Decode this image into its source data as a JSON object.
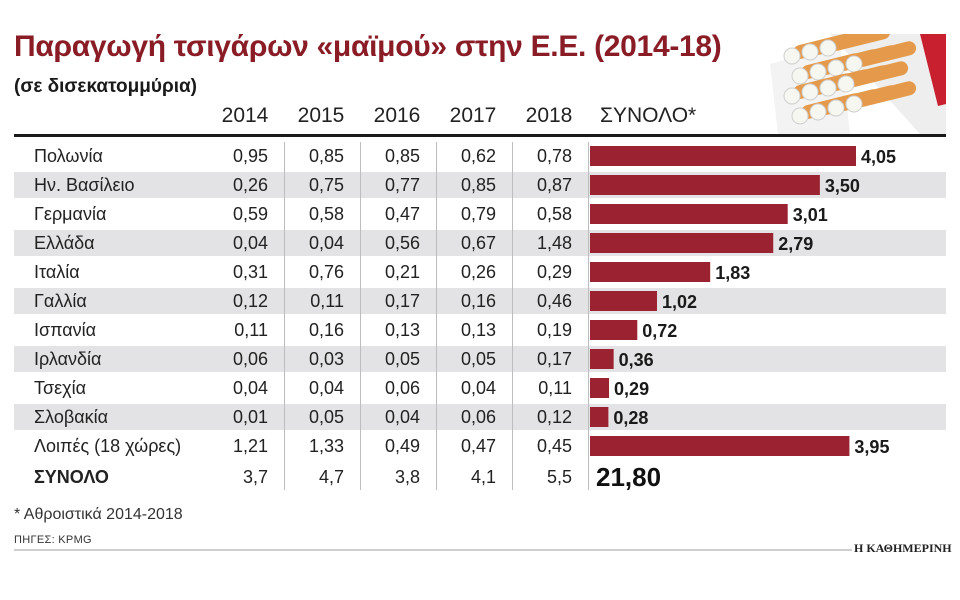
{
  "title": "Παραγωγή τσιγάρων «μαϊμού» στην Ε.Ε. (2014-18)",
  "subtitle": "(σε δισεκατομμύρια)",
  "footnote": "* Αθροιστικά 2014-2018",
  "source": "ΠΗΓΕΣ: KPMG",
  "brand": "Η ΚΑΘΗΜΕΡΙΝΗ",
  "colors": {
    "title": "#8a1c26",
    "bar": "#9b2331",
    "shade": "#e3e3e5"
  },
  "chart_data": {
    "type": "table",
    "title": "Παραγωγή τσιγάρων «μαϊμού» στην Ε.Ε. (2014-18)",
    "subtitle": "(σε δισεκατομμύρια)",
    "columns": [
      "2014",
      "2015",
      "2016",
      "2017",
      "2018",
      "ΣΥΝΟΛΟ*"
    ],
    "rows": [
      {
        "country": "Πολωνία",
        "values": [
          "0,95",
          "0,85",
          "0,85",
          "0,62",
          "0,78"
        ],
        "total": 4.05,
        "total_label": "4,05"
      },
      {
        "country": "Ην. Βασίλειο",
        "values": [
          "0,26",
          "0,75",
          "0,77",
          "0,85",
          "0,87"
        ],
        "total": 3.5,
        "total_label": "3,50"
      },
      {
        "country": "Γερμανία",
        "values": [
          "0,59",
          "0,58",
          "0,47",
          "0,79",
          "0,58"
        ],
        "total": 3.01,
        "total_label": "3,01"
      },
      {
        "country": "Ελλάδα",
        "values": [
          "0,04",
          "0,04",
          "0,56",
          "0,67",
          "1,48"
        ],
        "total": 2.79,
        "total_label": "2,79"
      },
      {
        "country": "Ιταλία",
        "values": [
          "0,31",
          "0,76",
          "0,21",
          "0,26",
          "0,29"
        ],
        "total": 1.83,
        "total_label": "1,83"
      },
      {
        "country": "Γαλλία",
        "values": [
          "0,12",
          "0,11",
          "0,17",
          "0,16",
          "0,46"
        ],
        "total": 1.02,
        "total_label": "1,02"
      },
      {
        "country": "Ισπανία",
        "values": [
          "0,11",
          "0,16",
          "0,13",
          "0,13",
          "0,19"
        ],
        "total": 0.72,
        "total_label": "0,72"
      },
      {
        "country": "Ιρλανδία",
        "values": [
          "0,06",
          "0,03",
          "0,05",
          "0,05",
          "0,17"
        ],
        "total": 0.36,
        "total_label": "0,36"
      },
      {
        "country": "Τσεχία",
        "values": [
          "0,04",
          "0,04",
          "0,06",
          "0,04",
          "0,11"
        ],
        "total": 0.29,
        "total_label": "0,29"
      },
      {
        "country": "Σλοβακία",
        "values": [
          "0,01",
          "0,05",
          "0,04",
          "0,06",
          "0,12"
        ],
        "total": 0.28,
        "total_label": "0,28"
      },
      {
        "country": "Λοιπές (18 χώρες)",
        "values": [
          "1,21",
          "1,33",
          "0,49",
          "0,47",
          "0,45"
        ],
        "total": 3.95,
        "total_label": "3,95"
      }
    ],
    "totals_row": {
      "label": "ΣΥΝΟΛΟ",
      "values": [
        "3,7",
        "4,7",
        "3,8",
        "4,1",
        "5,5"
      ],
      "grand_total": "21,80"
    },
    "bar_max": 4.05
  }
}
